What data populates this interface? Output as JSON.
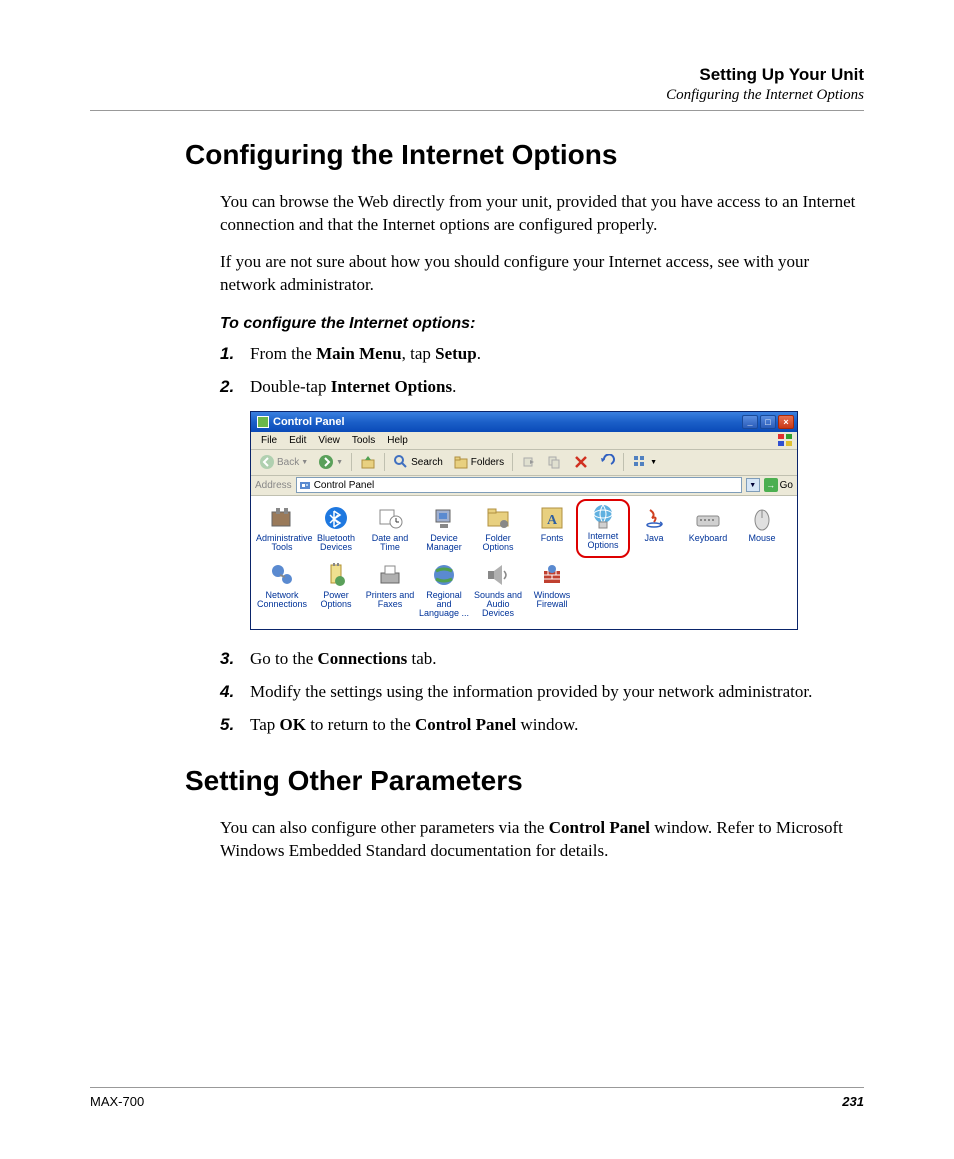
{
  "header": {
    "chapter": "Setting Up Your Unit",
    "section": "Configuring the Internet Options"
  },
  "h1": "Configuring the Internet Options",
  "p1": "You can browse the Web directly from your unit, provided that you have access to an Internet connection and that the Internet options are configured properly.",
  "p2": "If you are not sure about how you should configure your Internet access, see with your network administrator.",
  "instr_head": "To configure the Internet options:",
  "steps_a": [
    {
      "n": "1.",
      "pre": "From the ",
      "b1": "Main Menu",
      "mid": ", tap ",
      "b2": "Setup",
      "post": "."
    },
    {
      "n": "2.",
      "pre": "Double-tap ",
      "b1": "Internet Options",
      "mid": "",
      "b2": "",
      "post": "."
    }
  ],
  "steps_b": [
    {
      "n": "3.",
      "pre": "Go to the ",
      "b1": "Connections",
      "mid": " tab.",
      "b2": "",
      "post": ""
    },
    {
      "n": "4.",
      "pre": "Modify the settings using the information provided by your network administrator.",
      "b1": "",
      "mid": "",
      "b2": "",
      "post": ""
    },
    {
      "n": "5.",
      "pre": "Tap ",
      "b1": "OK",
      "mid": " to return to the ",
      "b2": "Control Panel",
      "post": " window."
    }
  ],
  "h2": "Setting Other Parameters",
  "p3_pre": "You can also configure other parameters via the ",
  "p3_b": "Control Panel",
  "p3_post": " window. Refer to Microsoft Windows Embedded Standard documentation for details.",
  "footer": {
    "model": "MAX-700",
    "page": "231"
  },
  "cp": {
    "title": "Control Panel",
    "menus": [
      "File",
      "Edit",
      "View",
      "Tools",
      "Help"
    ],
    "toolbar": {
      "back": "Back",
      "search": "Search",
      "folders": "Folders"
    },
    "address": {
      "label": "Address",
      "value": "Control Panel",
      "go": "Go"
    },
    "icons_row1": [
      {
        "label": "Administrative Tools",
        "color": "#9a7a5a"
      },
      {
        "label": "Bluetooth Devices",
        "color": "#1e78e0"
      },
      {
        "label": "Date and Time",
        "color": "#b0a070"
      },
      {
        "label": "Device Manager",
        "color": "#7a8aaa"
      },
      {
        "label": "Folder Options",
        "color": "#d8b048"
      },
      {
        "label": "Fonts",
        "color": "#d8b048"
      },
      {
        "label": "Internet Options",
        "color": "#3a90d0",
        "highlighted": true
      },
      {
        "label": "Java",
        "color": "#c07040"
      },
      {
        "label": "Keyboard",
        "color": "#a0a0a0"
      },
      {
        "label": "Mouse",
        "color": "#c0c0c0"
      }
    ],
    "icons_row2": [
      {
        "label": "Network Connections",
        "color": "#4a8ad0"
      },
      {
        "label": "Power Options",
        "color": "#d8b048"
      },
      {
        "label": "Printers and Faxes",
        "color": "#888888"
      },
      {
        "label": "Regional and Language ...",
        "color": "#4a8ad0"
      },
      {
        "label": "Sounds and Audio Devices",
        "color": "#a0a0a0"
      },
      {
        "label": "Windows Firewall",
        "color": "#c04030"
      }
    ]
  }
}
